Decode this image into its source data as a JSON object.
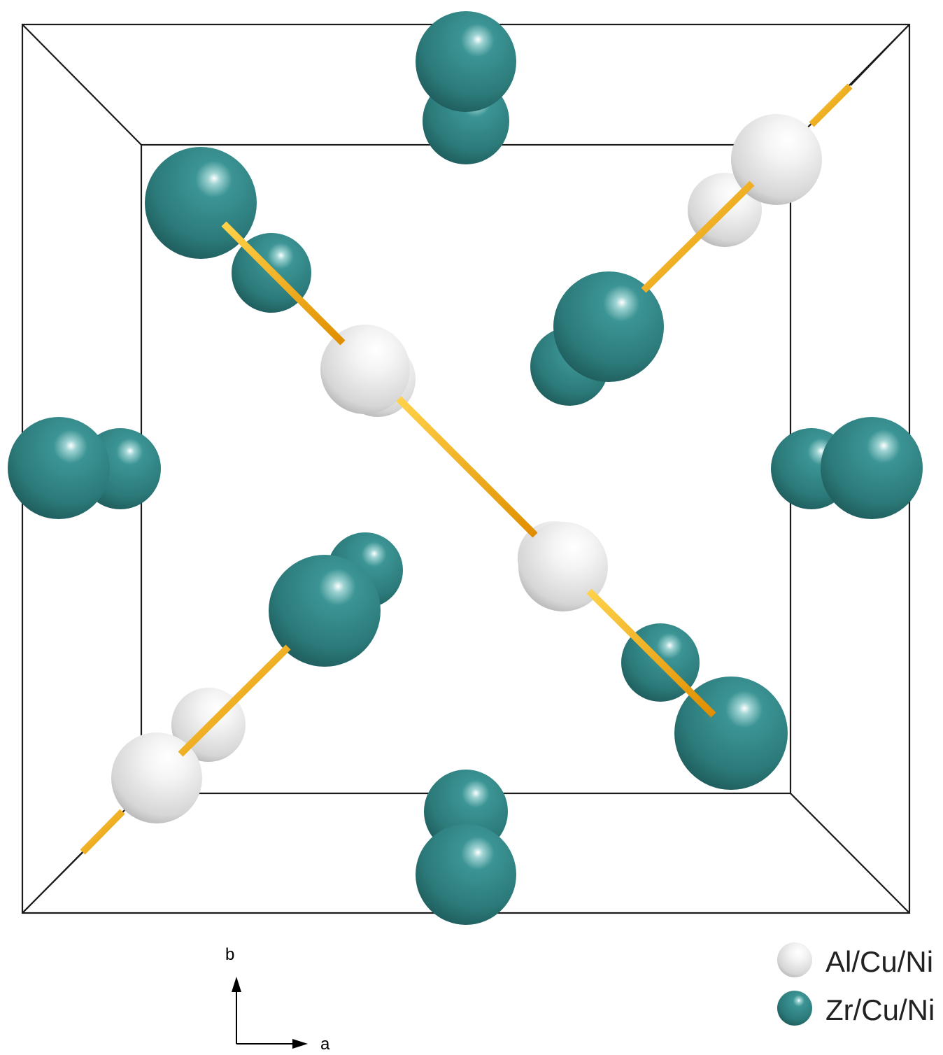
{
  "colors": {
    "background": "#ffffff",
    "cell_edges": "#1a1a1a",
    "zr_cu_ni_atom": "#2f7f7f",
    "al_cu_ni_atom": "#e6e6e6",
    "bond": "#f2a60d"
  },
  "axes": {
    "b_label": "b",
    "a_label": "a"
  },
  "legend": {
    "items": [
      {
        "label": "Al/Cu/Ni",
        "color": "#e6e6e6",
        "icon": "white-sphere-icon"
      },
      {
        "label": "Zr/Cu/Ni",
        "color": "#2f7f7f",
        "icon": "teal-sphere-icon"
      }
    ]
  }
}
